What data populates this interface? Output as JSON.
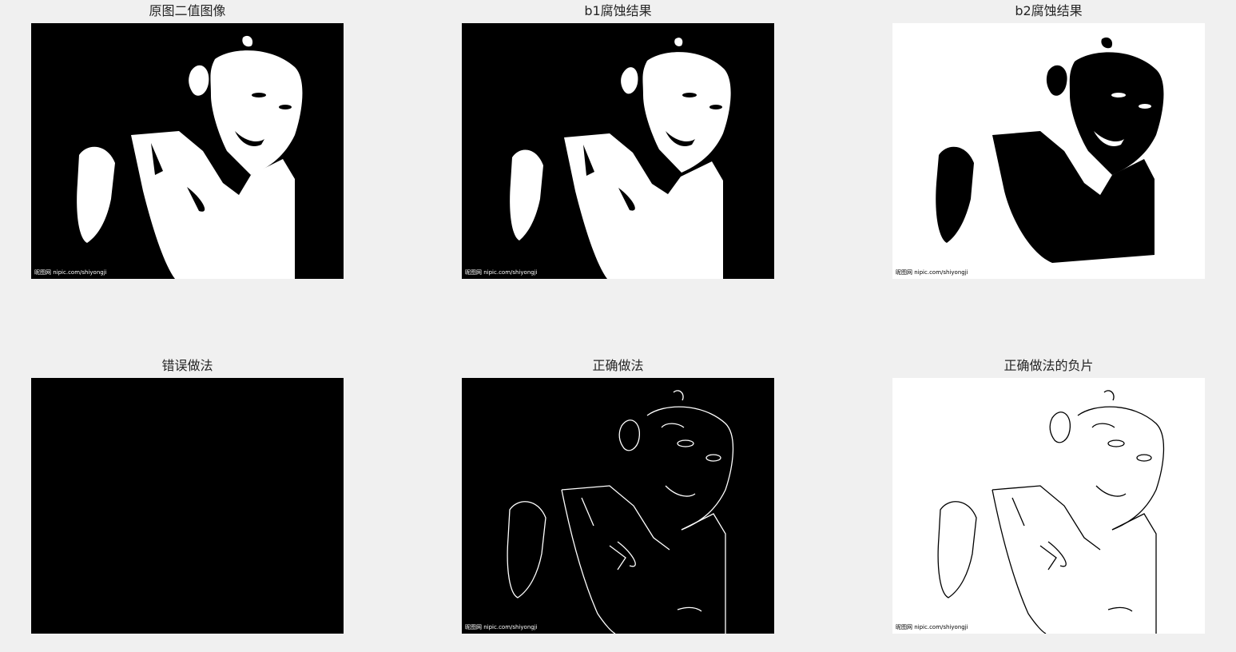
{
  "figure": {
    "background": "#f0f0f0",
    "panels": [
      {
        "id": "p1",
        "title": "原图二值图像",
        "mode": "filled",
        "inverted": false,
        "watermark": "昵图网 nipic.com/shiyongji"
      },
      {
        "id": "p2",
        "title": "b1腐蚀结果",
        "mode": "filled",
        "inverted": false,
        "watermark": "昵图网 nipic.com/shiyongji"
      },
      {
        "id": "p3",
        "title": "b2腐蚀结果",
        "mode": "filled",
        "inverted": true,
        "watermark": "昵图网 nipic.com/shiyongji"
      },
      {
        "id": "p4",
        "title": "错误做法",
        "mode": "blank",
        "inverted": false,
        "watermark": ""
      },
      {
        "id": "p5",
        "title": "正确做法",
        "mode": "edges",
        "inverted": false,
        "watermark": "昵图网 nipic.com/shiyongji"
      },
      {
        "id": "p6",
        "title": "正确做法的负片",
        "mode": "edges",
        "inverted": true,
        "watermark": "昵图网 nipic.com/shiyongji"
      }
    ]
  }
}
